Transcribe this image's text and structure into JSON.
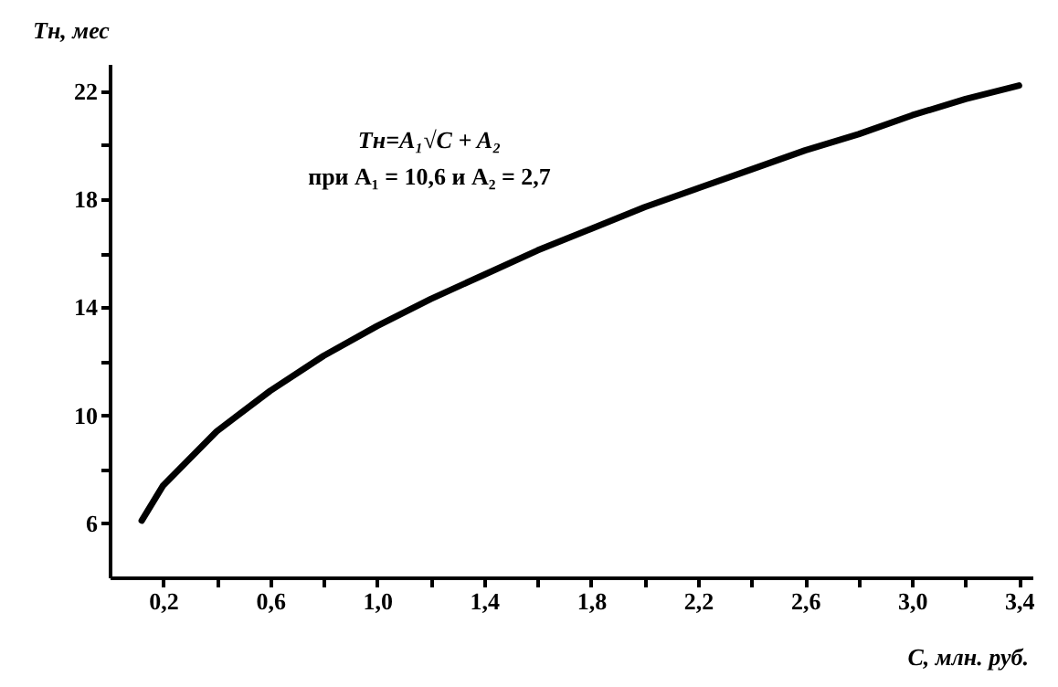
{
  "chart_data": {
    "type": "line",
    "xlabel": "C, млн. руб.",
    "ylabel": "Tн, мес",
    "annotations": [
      "Tн=A₁√C + A₂",
      "при A₁ = 10,6 и A₂ = 2,7"
    ],
    "x": [
      0.12,
      0.2,
      0.4,
      0.6,
      0.8,
      1.0,
      1.2,
      1.4,
      1.6,
      1.8,
      2.0,
      2.2,
      2.4,
      2.6,
      2.8,
      3.0,
      3.2,
      3.4
    ],
    "series": [
      {
        "color": "#000000",
        "values": [
          6.1,
          7.4,
          9.4,
          10.9,
          12.2,
          13.3,
          14.3,
          15.2,
          16.1,
          16.9,
          17.7,
          18.4,
          19.1,
          19.8,
          20.4,
          21.1,
          21.7,
          22.2
        ]
      }
    ],
    "xlim": [
      0,
      3.45
    ],
    "ylim": [
      4,
      23
    ],
    "xticks": [
      {
        "value": 0.2,
        "label": "0,2"
      },
      {
        "value": 0.4,
        "label": null
      },
      {
        "value": 0.6,
        "label": "0,6"
      },
      {
        "value": 0.8,
        "label": null
      },
      {
        "value": 1.0,
        "label": "1,0"
      },
      {
        "value": 1.2,
        "label": null
      },
      {
        "value": 1.4,
        "label": "1,4"
      },
      {
        "value": 1.6,
        "label": null
      },
      {
        "value": 1.8,
        "label": "1,8"
      },
      {
        "value": 2.0,
        "label": null
      },
      {
        "value": 2.2,
        "label": "2,2"
      },
      {
        "value": 2.4,
        "label": null
      },
      {
        "value": 2.6,
        "label": "2,6"
      },
      {
        "value": 2.8,
        "label": null
      },
      {
        "value": 3.0,
        "label": "3,0"
      },
      {
        "value": 3.2,
        "label": null
      },
      {
        "value": 3.4,
        "label": "3,4"
      }
    ],
    "yticks": [
      6,
      {
        "value": 8,
        "label": null
      },
      10,
      {
        "value": 12,
        "label": null
      },
      14,
      {
        "value": 16,
        "label": null
      },
      18,
      {
        "value": 20,
        "label": null
      },
      22
    ],
    "grid": false,
    "marker": "none",
    "line_style": "solid"
  }
}
